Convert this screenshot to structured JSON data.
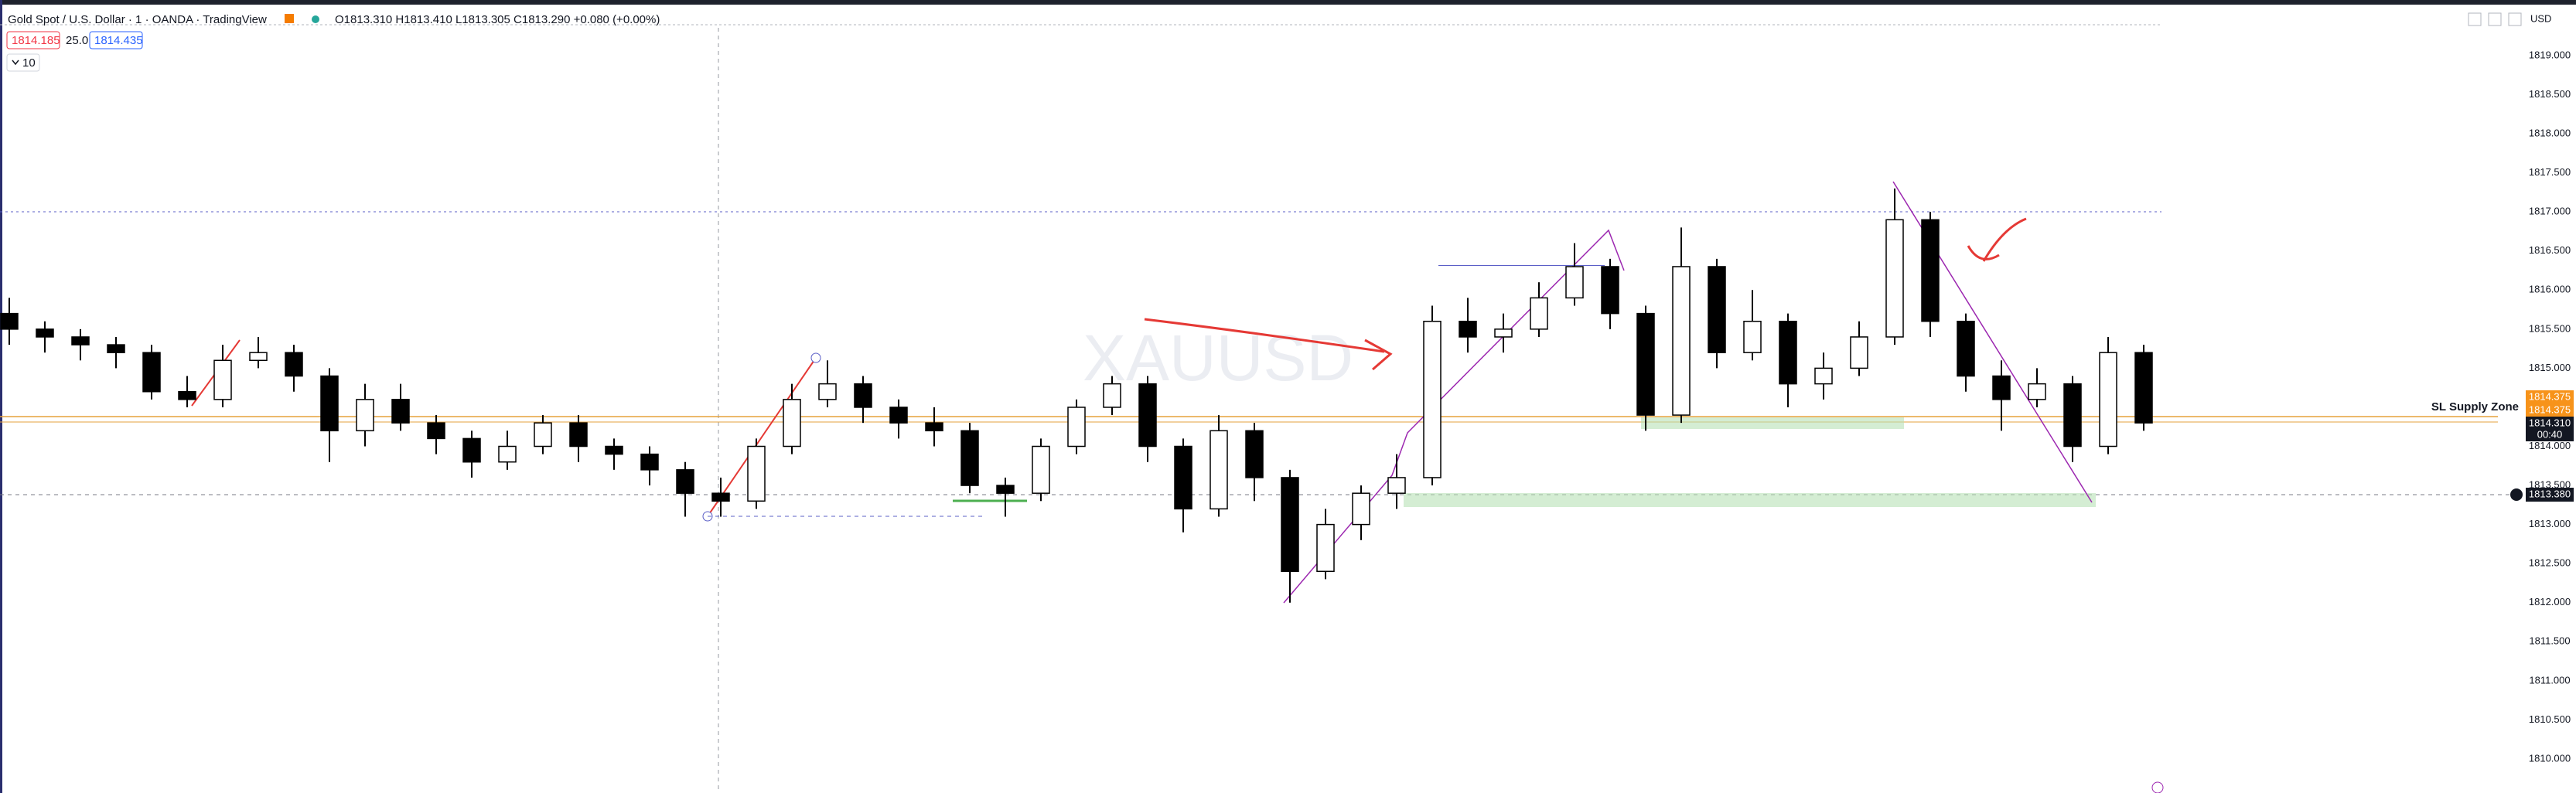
{
  "header": {
    "symbol": "Gold Spot / U.S. Dollar · 1 · OANDA · TradingView",
    "ohlc": "O1813.310 H1813.410 L1813.305 C1813.290 +0.080 (+0.00%)",
    "sell": "1814.185",
    "spread": "25.0",
    "buy": "1814.435",
    "indicators": "10"
  },
  "currency": "USD",
  "watermark": "XAUUSD",
  "zone_label": "SL Supply Zone",
  "price_scale_tags": [
    "1814.375",
    "1814.375",
    "1814.310",
    "00:40"
  ],
  "crosshair_price": "1813.380",
  "chart_data": {
    "type": "candlestick",
    "up_color": "#ffffff",
    "down_color": "#000000",
    "grid": false,
    "ylim": [
      1809.564,
      1819.712
    ],
    "yticks": [
      {
        "value": 1810,
        "label": "1810.000"
      },
      {
        "value": 1810.5,
        "label": "1810.500"
      },
      {
        "value": 1811,
        "label": "1811.000"
      },
      {
        "value": 1811.5,
        "label": "1811.500"
      },
      {
        "value": 1812,
        "label": "1812.000"
      },
      {
        "value": 1812.5,
        "label": "1812.500"
      },
      {
        "value": 1813,
        "label": "1813.000"
      },
      {
        "value": 1813.5,
        "label": "1813.500"
      },
      {
        "value": 1814,
        "label": "1814.000"
      },
      {
        "value": 1814.5,
        "label": "1814.500"
      },
      {
        "value": 1815,
        "label": "1815.000"
      },
      {
        "value": 1815.5,
        "label": "1815.500"
      },
      {
        "value": 1816,
        "label": "1816.000"
      },
      {
        "value": 1816.5,
        "label": "1816.500"
      },
      {
        "value": 1817,
        "label": "1817.000"
      },
      {
        "value": 1817.5,
        "label": "1817.500"
      },
      {
        "value": 1818,
        "label": "1818.000"
      },
      {
        "value": 1818.5,
        "label": "1818.500"
      },
      {
        "value": 1819,
        "label": "1819.000"
      }
    ],
    "open": [
      1815.7,
      1815.5,
      1815.4,
      1815.3,
      1815.2,
      1814.7,
      1814.6,
      1815.1,
      1815.2,
      1814.9,
      1814.2,
      1814.6,
      1814.3,
      1814.1,
      1813.8,
      1814.0,
      1814.3,
      1814.0,
      1813.9,
      1813.7,
      1813.4,
      1813.3,
      1814.0,
      1814.6,
      1814.8,
      1814.5,
      1814.3,
      1814.2,
      1813.5,
      1813.4,
      1814.0,
      1814.5,
      1814.8,
      1814.0,
      1813.2,
      1814.2,
      1813.6,
      1812.4,
      1813.0,
      1813.4,
      1813.6,
      1815.6,
      1815.4,
      1815.5,
      1815.9,
      1816.3,
      1815.7,
      1814.4,
      1816.3,
      1815.2,
      1815.6,
      1814.8,
      1815.0,
      1815.4,
      1816.9,
      1815.6,
      1814.9,
      1814.6,
      1814.8,
      1814.0,
      1815.2
    ],
    "high": [
      1815.9,
      1815.6,
      1815.5,
      1815.4,
      1815.3,
      1814.9,
      1815.3,
      1815.4,
      1815.3,
      1815.0,
      1814.8,
      1814.8,
      1814.4,
      1814.2,
      1814.2,
      1814.4,
      1814.4,
      1814.1,
      1814.0,
      1813.8,
      1813.6,
      1814.1,
      1814.8,
      1815.1,
      1814.9,
      1814.6,
      1814.5,
      1814.3,
      1813.6,
      1814.1,
      1814.6,
      1814.9,
      1814.9,
      1814.1,
      1814.4,
      1814.3,
      1813.7,
      1813.2,
      1813.5,
      1813.9,
      1815.8,
      1815.9,
      1815.7,
      1816.1,
      1816.6,
      1816.4,
      1815.8,
      1816.8,
      1816.4,
      1816.0,
      1815.7,
      1815.2,
      1815.6,
      1817.3,
      1817.0,
      1815.7,
      1815.1,
      1815.0,
      1814.9,
      1815.4,
      1815.3
    ],
    "low": [
      1815.3,
      1815.2,
      1815.1,
      1815.0,
      1814.6,
      1814.5,
      1814.5,
      1815.0,
      1814.7,
      1813.8,
      1814.0,
      1814.2,
      1813.9,
      1813.6,
      1813.7,
      1813.9,
      1813.8,
      1813.7,
      1813.5,
      1813.1,
      1813.1,
      1813.2,
      1813.9,
      1814.5,
      1814.3,
      1814.1,
      1814.0,
      1813.4,
      1813.1,
      1813.3,
      1813.9,
      1814.4,
      1813.8,
      1812.9,
      1813.1,
      1813.3,
      1812.0,
      1812.3,
      1812.8,
      1813.2,
      1813.5,
      1815.2,
      1815.2,
      1815.4,
      1815.8,
      1815.5,
      1814.2,
      1814.3,
      1815.0,
      1815.1,
      1814.5,
      1814.6,
      1814.9,
      1815.3,
      1815.4,
      1814.7,
      1814.2,
      1814.5,
      1813.8,
      1813.9,
      1814.2
    ],
    "close": [
      1815.5,
      1815.4,
      1815.3,
      1815.2,
      1814.7,
      1814.6,
      1815.1,
      1815.2,
      1814.9,
      1814.2,
      1814.6,
      1814.3,
      1814.1,
      1813.8,
      1814.0,
      1814.3,
      1814.0,
      1813.9,
      1813.7,
      1813.4,
      1813.3,
      1814.0,
      1814.6,
      1814.8,
      1814.5,
      1814.3,
      1814.2,
      1813.5,
      1813.4,
      1814.0,
      1814.5,
      1814.8,
      1814.0,
      1813.2,
      1814.2,
      1813.6,
      1812.4,
      1813.0,
      1813.4,
      1813.6,
      1815.6,
      1815.4,
      1815.5,
      1815.9,
      1816.3,
      1815.7,
      1814.4,
      1816.3,
      1815.2,
      1815.6,
      1814.8,
      1815.0,
      1815.4,
      1816.9,
      1815.6,
      1814.9,
      1814.6,
      1814.8,
      1814.0,
      1815.2,
      1814.3
    ]
  }
}
